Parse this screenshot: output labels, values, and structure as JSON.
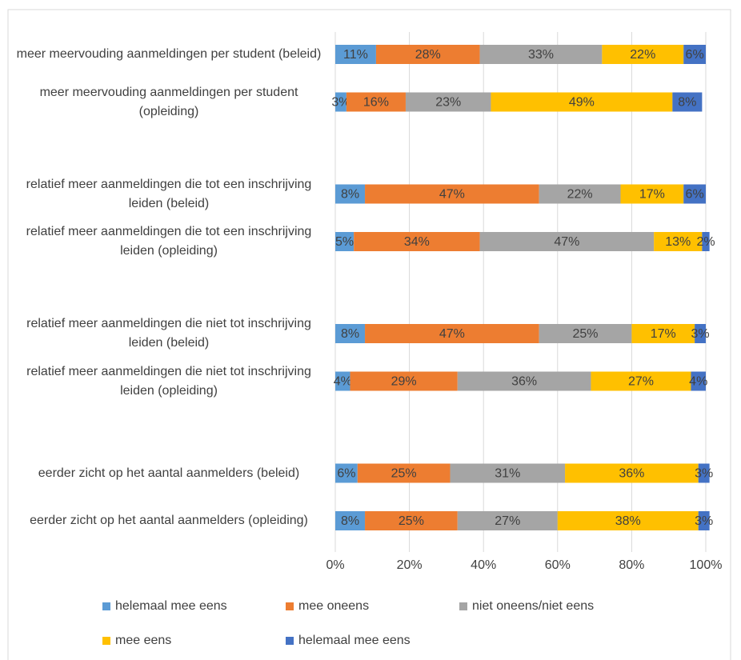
{
  "chart_data": {
    "type": "bar100h",
    "categories": [
      "meer meervouding aanmeldingen per student (beleid)",
      "meer meervouding aanmeldingen per student (opleiding)",
      "relatief meer aanmeldingen die tot een inschrijving leiden (beleid)",
      "relatief meer aanmeldingen die tot een inschrijving leiden (opleiding)",
      "relatief meer aanmeldingen die niet tot inschrijving leiden (beleid)",
      "relatief meer aanmeldingen die niet tot inschrijving leiden (opleiding)",
      "eerder zicht op het aantal aanmelders (beleid)",
      "eerder zicht op het aantal aanmelders (opleiding)"
    ],
    "series": [
      {
        "name": "helemaal mee eens",
        "color": "#5b9bd5",
        "values": [
          11,
          3,
          8,
          5,
          8,
          4,
          6,
          8
        ],
        "value_labels": [
          "11%",
          "3%",
          "8%",
          "5%",
          "8%",
          "4%",
          "6%",
          "8%"
        ]
      },
      {
        "name": "mee oneens",
        "color": "#ed7d31",
        "values": [
          28,
          16,
          47,
          34,
          47,
          29,
          25,
          25
        ],
        "value_labels": [
          "28%",
          "16%",
          "47%",
          "34%",
          "47%",
          "29%",
          "25%",
          "25%"
        ]
      },
      {
        "name": "niet oneens/niet eens",
        "color": "#a5a5a5",
        "values": [
          33,
          23,
          22,
          47,
          25,
          36,
          31,
          27
        ],
        "value_labels": [
          "33%",
          "23%",
          "22%",
          "47%",
          "25%",
          "36%",
          "31%",
          "27%"
        ]
      },
      {
        "name": "mee eens",
        "color": "#ffc000",
        "values": [
          22,
          49,
          17,
          13,
          17,
          27,
          36,
          38
        ],
        "value_labels": [
          "22%",
          "49%",
          "17%",
          "13%",
          "17%",
          "27%",
          "36%",
          "38%"
        ]
      },
      {
        "name": "helemaal mee eens",
        "color": "#4472c4",
        "values": [
          6,
          8,
          6,
          2,
          3,
          4,
          3,
          3
        ],
        "value_labels": [
          "6%",
          "8%",
          "6%",
          "2%",
          "3%",
          "4%",
          "3%",
          "3%"
        ]
      }
    ],
    "xlim": [
      0,
      100
    ],
    "xticks": [
      {
        "value": 0,
        "label": "0%"
      },
      {
        "value": 20,
        "label": "20%"
      },
      {
        "value": 40,
        "label": "40%"
      },
      {
        "value": 60,
        "label": "60%"
      },
      {
        "value": 80,
        "label": "80%"
      },
      {
        "value": 100,
        "label": "100%"
      }
    ],
    "grid": true
  }
}
